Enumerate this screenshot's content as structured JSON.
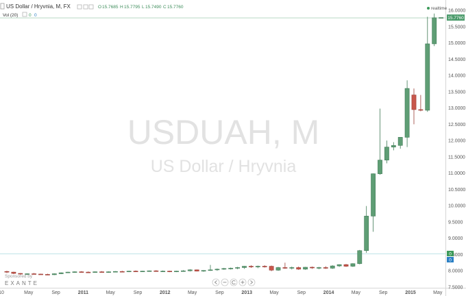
{
  "header": {
    "title": "US Dollar / Hryvnia, M, FX",
    "ohlc": [
      {
        "label": "O",
        "value": "15.7685"
      },
      {
        "label": "H",
        "value": "15.7795"
      },
      {
        "label": "L",
        "value": "15.7490"
      },
      {
        "label": "C",
        "value": "15.7760"
      }
    ],
    "volume_label": "Vol (20)",
    "volume_values": [
      "0",
      "0"
    ],
    "realtime_label": "realtime"
  },
  "watermark": {
    "symbol": "USDUAH, M",
    "name": "US Dollar / Hryvnia"
  },
  "sponsor": {
    "label": "Sponsored by",
    "brand": "EXANTE"
  },
  "price_label": "15.7760",
  "volume_badges": [
    "0",
    "0"
  ],
  "colors": {
    "up": "#5f9e75",
    "up_border": "#3f7a55",
    "down": "#c8574c",
    "down_border": "#9a3b33",
    "price_label_bg": "#4a9a6a",
    "axis_text": "#555555"
  },
  "chart_data": {
    "type": "candlestick",
    "symbol": "USDUAH",
    "interval": "M",
    "yrange": [
      7.5,
      16.0
    ],
    "y_ticks": [
      "16.0000",
      "15.5000",
      "15.0000",
      "14.5000",
      "14.0000",
      "13.5000",
      "13.0000",
      "12.5000",
      "12.0000",
      "11.5000",
      "11.0000",
      "10.5000",
      "10.0000",
      "9.5000",
      "9.0000",
      "8.5000",
      "8.0000",
      "7.5000"
    ],
    "x_ticks": [
      "10",
      "May",
      "Sep",
      "2011",
      "May",
      "Sep",
      "2012",
      "May",
      "Sep",
      "2013",
      "May",
      "Sep",
      "2014",
      "May",
      "Sep",
      "2015",
      "May"
    ],
    "candles": [
      {
        "o": 7.98,
        "h": 8.0,
        "l": 7.93,
        "c": 7.96
      },
      {
        "o": 7.96,
        "h": 7.97,
        "l": 7.9,
        "c": 7.92
      },
      {
        "o": 7.92,
        "h": 7.93,
        "l": 7.88,
        "c": 7.9
      },
      {
        "o": 7.9,
        "h": 7.92,
        "l": 7.88,
        "c": 7.91
      },
      {
        "o": 7.91,
        "h": 7.93,
        "l": 7.89,
        "c": 7.9
      },
      {
        "o": 7.9,
        "h": 7.91,
        "l": 7.88,
        "c": 7.89
      },
      {
        "o": 7.89,
        "h": 7.91,
        "l": 7.87,
        "c": 7.88
      },
      {
        "o": 7.88,
        "h": 7.92,
        "l": 7.87,
        "c": 7.91
      },
      {
        "o": 7.91,
        "h": 7.95,
        "l": 7.9,
        "c": 7.94
      },
      {
        "o": 7.94,
        "h": 7.97,
        "l": 7.93,
        "c": 7.96
      },
      {
        "o": 7.96,
        "h": 7.98,
        "l": 7.94,
        "c": 7.97
      },
      {
        "o": 7.97,
        "h": 7.99,
        "l": 7.95,
        "c": 7.96
      },
      {
        "o": 7.96,
        "h": 7.98,
        "l": 7.94,
        "c": 7.95
      },
      {
        "o": 7.95,
        "h": 7.98,
        "l": 7.94,
        "c": 7.97
      },
      {
        "o": 7.97,
        "h": 7.99,
        "l": 7.95,
        "c": 7.96
      },
      {
        "o": 7.96,
        "h": 7.98,
        "l": 7.94,
        "c": 7.97
      },
      {
        "o": 7.97,
        "h": 7.99,
        "l": 7.96,
        "c": 7.98
      },
      {
        "o": 7.98,
        "h": 8.0,
        "l": 7.96,
        "c": 7.97
      },
      {
        "o": 7.97,
        "h": 8.0,
        "l": 7.96,
        "c": 7.99
      },
      {
        "o": 7.99,
        "h": 8.01,
        "l": 7.97,
        "c": 7.98
      },
      {
        "o": 7.98,
        "h": 8.0,
        "l": 7.97,
        "c": 7.99
      },
      {
        "o": 7.99,
        "h": 8.01,
        "l": 7.97,
        "c": 8.0
      },
      {
        "o": 8.0,
        "h": 8.02,
        "l": 7.97,
        "c": 7.98
      },
      {
        "o": 7.98,
        "h": 8.01,
        "l": 7.97,
        "c": 7.99
      },
      {
        "o": 7.99,
        "h": 8.0,
        "l": 7.96,
        "c": 7.97
      },
      {
        "o": 7.97,
        "h": 8.0,
        "l": 7.96,
        "c": 7.99
      },
      {
        "o": 7.99,
        "h": 8.02,
        "l": 7.97,
        "c": 8.0
      },
      {
        "o": 8.0,
        "h": 8.05,
        "l": 7.98,
        "c": 8.03
      },
      {
        "o": 8.03,
        "h": 8.04,
        "l": 7.98,
        "c": 7.99
      },
      {
        "o": 7.99,
        "h": 8.02,
        "l": 7.97,
        "c": 8.01
      },
      {
        "o": 8.01,
        "h": 8.18,
        "l": 8.0,
        "c": 8.03
      },
      {
        "o": 8.03,
        "h": 8.07,
        "l": 8.0,
        "c": 8.05
      },
      {
        "o": 8.05,
        "h": 8.09,
        "l": 8.03,
        "c": 8.07
      },
      {
        "o": 8.07,
        "h": 8.1,
        "l": 8.04,
        "c": 8.08
      },
      {
        "o": 8.08,
        "h": 8.12,
        "l": 8.05,
        "c": 8.1
      },
      {
        "o": 8.1,
        "h": 8.15,
        "l": 8.06,
        "c": 8.14
      },
      {
        "o": 8.14,
        "h": 8.17,
        "l": 8.09,
        "c": 8.12
      },
      {
        "o": 8.12,
        "h": 8.16,
        "l": 8.08,
        "c": 8.14
      },
      {
        "o": 8.14,
        "h": 8.17,
        "l": 8.1,
        "c": 8.13
      },
      {
        "o": 8.14,
        "h": 8.16,
        "l": 7.99,
        "c": 8.02
      },
      {
        "o": 8.02,
        "h": 8.12,
        "l": 8.0,
        "c": 8.1
      },
      {
        "o": 8.1,
        "h": 8.25,
        "l": 8.06,
        "c": 8.09
      },
      {
        "o": 8.09,
        "h": 8.13,
        "l": 8.04,
        "c": 8.1
      },
      {
        "o": 8.1,
        "h": 8.13,
        "l": 8.03,
        "c": 8.05
      },
      {
        "o": 8.05,
        "h": 8.12,
        "l": 8.03,
        "c": 8.11
      },
      {
        "o": 8.11,
        "h": 8.13,
        "l": 8.06,
        "c": 8.09
      },
      {
        "o": 8.09,
        "h": 8.12,
        "l": 8.05,
        "c": 8.1
      },
      {
        "o": 8.1,
        "h": 8.14,
        "l": 8.06,
        "c": 8.08
      },
      {
        "o": 8.08,
        "h": 8.17,
        "l": 8.06,
        "c": 8.15
      },
      {
        "o": 8.15,
        "h": 8.2,
        "l": 8.12,
        "c": 8.19
      },
      {
        "o": 8.19,
        "h": 8.21,
        "l": 8.12,
        "c": 8.14
      },
      {
        "o": 8.14,
        "h": 8.23,
        "l": 8.12,
        "c": 8.22
      },
      {
        "o": 8.22,
        "h": 8.64,
        "l": 8.2,
        "c": 8.62
      },
      {
        "o": 8.62,
        "h": 9.99,
        "l": 8.55,
        "c": 9.68
      },
      {
        "o": 9.68,
        "h": 10.99,
        "l": 9.2,
        "c": 10.98
      },
      {
        "o": 10.98,
        "h": 12.98,
        "l": 10.95,
        "c": 11.4
      },
      {
        "o": 11.4,
        "h": 12.0,
        "l": 11.3,
        "c": 11.8
      },
      {
        "o": 11.8,
        "h": 11.95,
        "l": 11.7,
        "c": 11.85
      },
      {
        "o": 11.85,
        "h": 12.1,
        "l": 11.75,
        "c": 12.1
      },
      {
        "o": 12.1,
        "h": 13.85,
        "l": 11.8,
        "c": 13.6
      },
      {
        "o": 13.4,
        "h": 13.6,
        "l": 12.5,
        "c": 12.95
      },
      {
        "o": 12.95,
        "h": 13.4,
        "l": 12.9,
        "c": 12.93
      },
      {
        "o": 12.93,
        "h": 15.8,
        "l": 12.88,
        "c": 14.97
      },
      {
        "o": 14.97,
        "h": 15.9,
        "l": 14.9,
        "c": 15.77
      },
      {
        "o": 15.7685,
        "h": 15.7795,
        "l": 15.749,
        "c": 15.776
      }
    ]
  }
}
